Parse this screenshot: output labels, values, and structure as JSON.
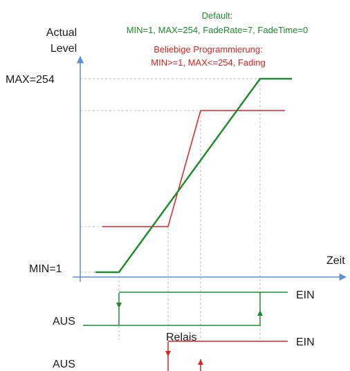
{
  "colors": {
    "default_series": "#1f8a2e",
    "fading_series": "#e02020",
    "axis": "#5b8fd0",
    "guide": "#b8b8b8",
    "text": "#1a1a1a"
  },
  "labels": {
    "y_axis_line1": "Actual",
    "y_axis_line2": "Level",
    "max": "MAX=254",
    "min": "MIN=1",
    "time": "Zeit",
    "off_default": "AUS",
    "on_default": "EIN",
    "relay": "Relais",
    "off_fading": "AUS",
    "on_fading": "EIN"
  },
  "legend": {
    "default_title": "Default:",
    "default_params": "MIN=1, MAX=254, FadeRate=7, FadeTime=0",
    "fading_title": "Beliebige Programmierung:",
    "fading_params": "MIN>=1, MAX<=254, Fading"
  }
}
